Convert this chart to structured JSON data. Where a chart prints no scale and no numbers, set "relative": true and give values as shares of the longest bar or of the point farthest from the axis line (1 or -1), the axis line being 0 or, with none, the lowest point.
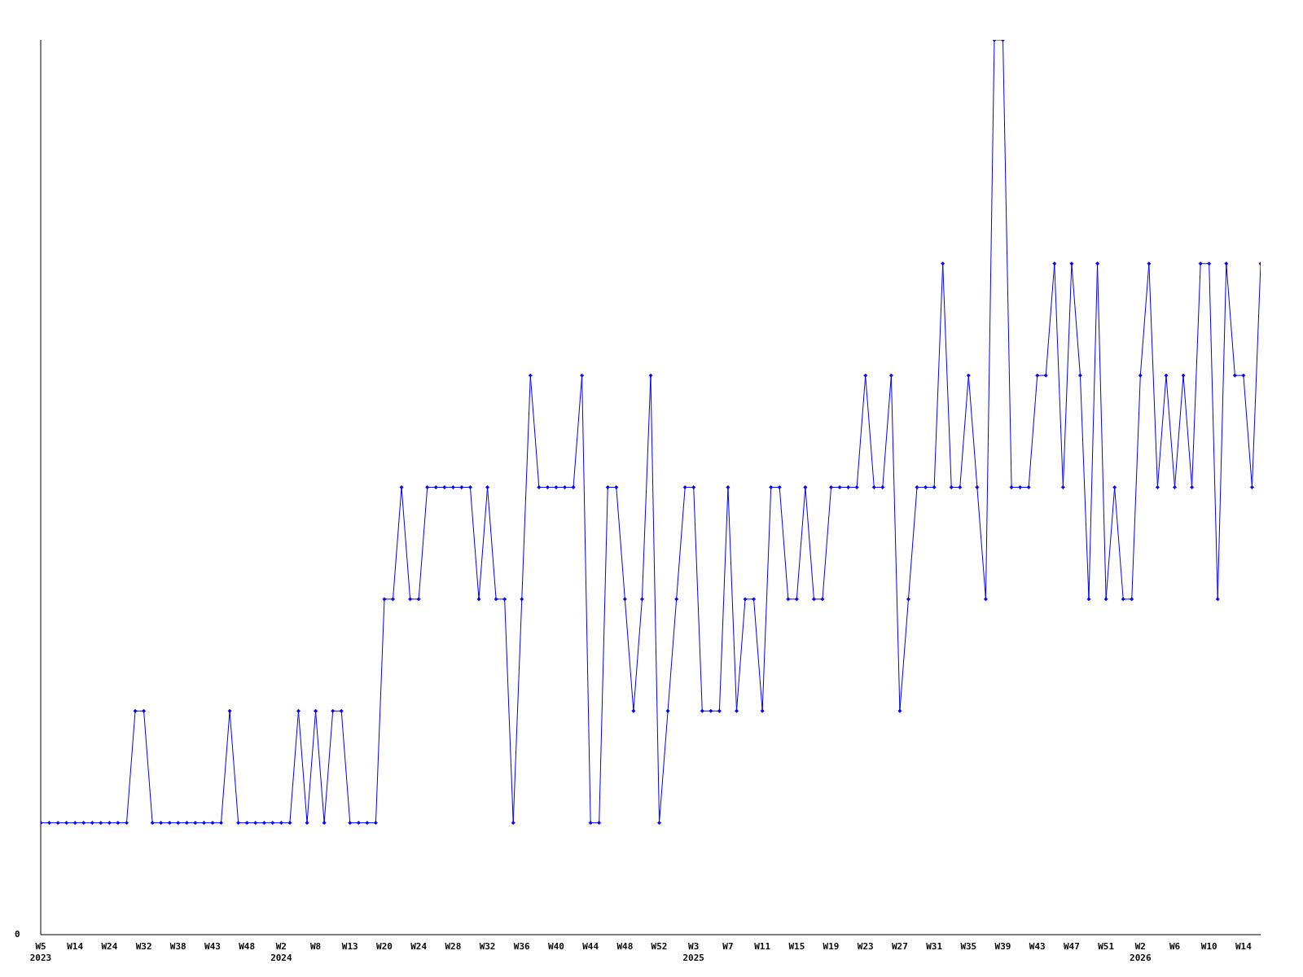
{
  "chart_data": {
    "type": "line",
    "relative": true,
    "marker": "diamond",
    "line_style": "solid",
    "grid": false,
    "legend": false,
    "annotations": [
      "0"
    ],
    "categories": [
      "W5\n2023",
      null,
      null,
      null,
      "W14",
      null,
      null,
      null,
      "W24",
      null,
      null,
      null,
      "W32",
      null,
      null,
      null,
      "W38",
      null,
      null,
      null,
      "W43",
      null,
      null,
      null,
      "W48",
      null,
      null,
      null,
      "W2\n2024",
      null,
      null,
      null,
      "W8",
      null,
      null,
      null,
      "W13",
      null,
      null,
      null,
      "W20",
      null,
      null,
      null,
      "W24",
      null,
      null,
      null,
      "W28",
      null,
      null,
      null,
      "W32",
      null,
      null,
      null,
      "W36",
      null,
      null,
      null,
      "W40",
      null,
      null,
      null,
      "W44",
      null,
      null,
      null,
      "W48",
      null,
      null,
      null,
      "W52",
      null,
      null,
      null,
      "W3\n2025",
      null,
      null,
      null,
      "W7",
      null,
      null,
      null,
      "W11",
      null,
      null,
      null,
      "W15",
      null,
      null,
      null,
      "W19",
      null,
      null,
      null,
      "W23",
      null,
      null,
      null,
      "W27",
      null,
      null,
      null,
      "W31",
      null,
      null,
      null,
      "W35",
      null,
      null,
      null,
      "W39",
      null,
      null,
      null,
      "W43",
      null,
      null,
      null,
      "W47",
      null,
      null,
      null,
      "W51",
      null,
      null,
      null,
      "W2\n2026",
      null,
      null,
      null,
      "W6",
      null,
      null,
      null,
      "W10",
      null,
      null,
      null,
      "W14",
      null,
      null
    ],
    "series": [
      {
        "color": "#0000ff",
        "values": [
          0.125,
          0.125,
          0.125,
          0.125,
          0.125,
          0.125,
          0.125,
          0.125,
          0.125,
          0.125,
          0.125,
          0.25,
          0.25,
          0.125,
          0.125,
          0.125,
          0.125,
          0.125,
          0.125,
          0.125,
          0.125,
          0.125,
          0.25,
          0.125,
          0.125,
          0.125,
          0.125,
          0.125,
          0.125,
          0.125,
          0.25,
          0.125,
          0.25,
          0.125,
          0.25,
          0.25,
          0.125,
          0.125,
          0.125,
          0.125,
          0.375,
          0.375,
          0.5,
          0.375,
          0.375,
          0.5,
          0.5,
          0.5,
          0.5,
          0.5,
          0.5,
          0.375,
          0.5,
          0.375,
          0.375,
          0.125,
          0.375,
          0.625,
          0.5,
          0.5,
          0.5,
          0.5,
          0.5,
          0.625,
          0.125,
          0.125,
          0.5,
          0.5,
          0.375,
          0.25,
          0.375,
          0.625,
          0.125,
          0.25,
          0.375,
          0.5,
          0.5,
          0.25,
          0.25,
          0.25,
          0.5,
          0.25,
          0.375,
          0.375,
          0.25,
          0.5,
          0.5,
          0.375,
          0.375,
          0.5,
          0.375,
          0.375,
          0.5,
          0.5,
          0.5,
          0.5,
          0.625,
          0.5,
          0.5,
          0.625,
          0.25,
          0.375,
          0.5,
          0.5,
          0.5,
          0.75,
          0.5,
          0.5,
          0.625,
          0.5,
          0.375,
          1,
          1,
          0.5,
          0.5,
          0.5,
          0.625,
          0.625,
          0.75,
          0.5,
          0.75,
          0.625,
          0.375,
          0.75,
          0.375,
          0.5,
          0.375,
          0.375,
          0.625,
          0.75,
          0.5,
          0.625,
          0.5,
          0.625,
          0.5,
          0.75,
          0.75,
          0.375,
          0.75,
          0.625,
          0.625,
          0.5,
          0.75
        ]
      }
    ]
  }
}
